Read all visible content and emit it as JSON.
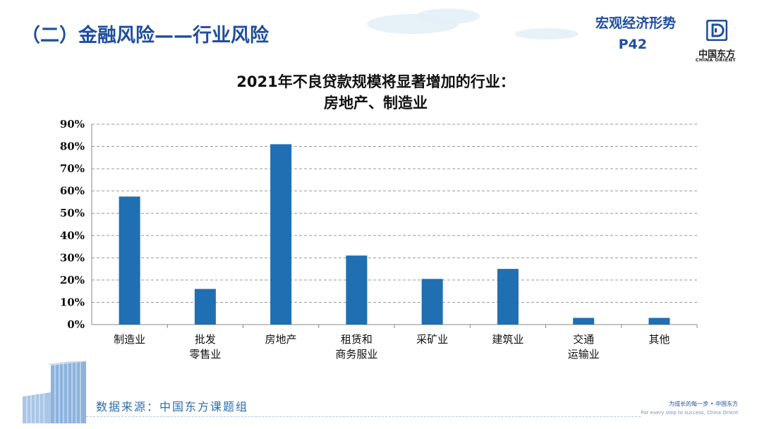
{
  "header": {
    "title": "（二）金融风险——行业风险",
    "section_label": "宏观经济形势",
    "page_number": "P42"
  },
  "logo": {
    "name": "中国东方",
    "subtitle": "CHINA ORIENT"
  },
  "chart_data": {
    "type": "bar",
    "title_lines": [
      "2021年不良贷款规模将显著增加的行业：",
      "房地产、制造业"
    ],
    "categories": [
      [
        "制造业"
      ],
      [
        "批发",
        "零售业"
      ],
      [
        "房地产"
      ],
      [
        "租赁和",
        "商务服业"
      ],
      [
        "采矿业"
      ],
      [
        "建筑业"
      ],
      [
        "交通",
        "运输业"
      ],
      [
        "其他"
      ]
    ],
    "values": [
      57.5,
      16,
      81,
      31,
      20.5,
      25,
      3,
      3
    ],
    "y_ticks": [
      "0%",
      "10%",
      "20%",
      "30%",
      "40%",
      "50%",
      "60%",
      "70%",
      "80%",
      "90%"
    ],
    "ylim": [
      0,
      90
    ],
    "grid": true,
    "bar_color": "#1f6fb2",
    "xlabel": "",
    "ylabel": ""
  },
  "footer": {
    "source": "数据来源：中国东方课题组",
    "slogan": "为成长的每一步 • 中国东方",
    "slogan_en": "For every step to success, China Orient"
  },
  "colors": {
    "brand": "#1f4e9c",
    "bar": "#1f6fb2"
  }
}
